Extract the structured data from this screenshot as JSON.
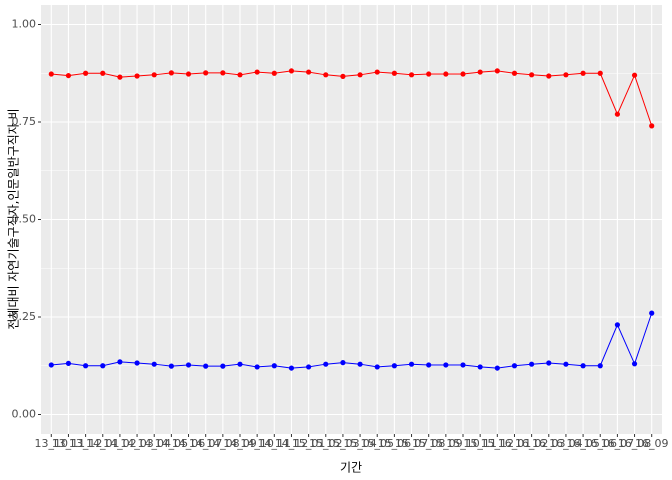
{
  "chart_data": {
    "type": "line",
    "x_label": "기간",
    "y_label": "전체대비 자연기술구직자,인문일반구직자 비",
    "categories": [
      "13_10",
      "13_11",
      "13_12",
      "14_01",
      "14_02",
      "14_03",
      "14_04",
      "14_05",
      "14_06",
      "14_07",
      "14_08",
      "14_09",
      "14_10",
      "14_11",
      "14_12",
      "15_01",
      "15_02",
      "15_03",
      "15_04",
      "15_05",
      "15_06",
      "15_07",
      "15_08",
      "15_09",
      "15_10",
      "15_11",
      "15_12",
      "16_01",
      "16_02",
      "16_03",
      "16_04",
      "16_05",
      "16_06",
      "16_07",
      "16_08",
      "16_09"
    ],
    "series": [
      {
        "name": "자연기술구직자",
        "color": "#ff0000",
        "values": [
          0.873,
          0.869,
          0.875,
          0.875,
          0.865,
          0.868,
          0.871,
          0.876,
          0.873,
          0.876,
          0.876,
          0.871,
          0.878,
          0.875,
          0.881,
          0.878,
          0.871,
          0.867,
          0.871,
          0.878,
          0.875,
          0.871,
          0.873,
          0.873,
          0.873,
          0.878,
          0.881,
          0.875,
          0.871,
          0.868,
          0.871,
          0.875,
          0.875,
          0.77,
          0.87,
          0.74
        ]
      },
      {
        "name": "인문일반구직자",
        "color": "#0000ff",
        "values": [
          0.127,
          0.131,
          0.125,
          0.125,
          0.135,
          0.132,
          0.129,
          0.124,
          0.127,
          0.124,
          0.124,
          0.129,
          0.122,
          0.125,
          0.119,
          0.122,
          0.129,
          0.133,
          0.129,
          0.122,
          0.125,
          0.129,
          0.127,
          0.127,
          0.127,
          0.122,
          0.119,
          0.125,
          0.129,
          0.132,
          0.129,
          0.125,
          0.125,
          0.23,
          0.13,
          0.26
        ]
      }
    ],
    "ylim": [
      -0.05,
      1.05
    ],
    "yticks": [
      {
        "value": 0,
        "label": "0.00"
      },
      {
        "value": 0.25,
        "label": "0.25"
      },
      {
        "value": 0.5,
        "label": "0.50"
      },
      {
        "value": 0.75,
        "label": "0.75"
      },
      {
        "value": 1,
        "label": "1.00"
      }
    ],
    "grid": true
  }
}
